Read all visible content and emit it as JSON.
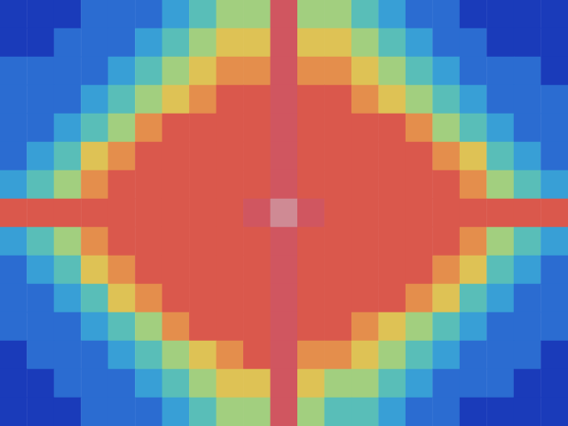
{
  "chart_data": {
    "type": "heatmap",
    "tick_labels": false,
    "grid": false,
    "color_range": [
      0,
      10
    ],
    "cells": [
      [
        1,
        1,
        1,
        2,
        2,
        2,
        3,
        4,
        5,
        5,
        9,
        5,
        5,
        4,
        3,
        2,
        2,
        1,
        1,
        1,
        1
      ],
      [
        1,
        1,
        2,
        2,
        2,
        3,
        4,
        5,
        6,
        6,
        9,
        6,
        6,
        5,
        4,
        3,
        2,
        2,
        1,
        1,
        1
      ],
      [
        2,
        2,
        2,
        2,
        3,
        4,
        5,
        6,
        7,
        7,
        9,
        7,
        7,
        6,
        5,
        4,
        3,
        2,
        2,
        2,
        1
      ],
      [
        2,
        2,
        2,
        3,
        4,
        5,
        6,
        7,
        8,
        8,
        9,
        8,
        8,
        7,
        6,
        5,
        4,
        3,
        2,
        2,
        2
      ],
      [
        2,
        2,
        3,
        4,
        5,
        7,
        8,
        8,
        8,
        8,
        9,
        8,
        8,
        8,
        8,
        7,
        5,
        4,
        3,
        2,
        2
      ],
      [
        2,
        3,
        4,
        6,
        7,
        8,
        8,
        8,
        8,
        8,
        9,
        8,
        8,
        8,
        8,
        8,
        7,
        6,
        4,
        3,
        2
      ],
      [
        3,
        4,
        5,
        7,
        8,
        8,
        8,
        8,
        8,
        8,
        9,
        8,
        8,
        8,
        8,
        8,
        8,
        7,
        5,
        4,
        3
      ],
      [
        8,
        8,
        8,
        8,
        8,
        8,
        8,
        8,
        8,
        9,
        10,
        9,
        8,
        8,
        8,
        8,
        8,
        8,
        8,
        8,
        8
      ],
      [
        3,
        4,
        5,
        7,
        8,
        8,
        8,
        8,
        8,
        8,
        9,
        8,
        8,
        8,
        8,
        8,
        8,
        7,
        5,
        4,
        3
      ],
      [
        2,
        3,
        4,
        6,
        7,
        8,
        8,
        8,
        8,
        8,
        9,
        8,
        8,
        8,
        8,
        8,
        7,
        6,
        4,
        3,
        2
      ],
      [
        2,
        2,
        3,
        4,
        6,
        7,
        8,
        8,
        8,
        8,
        9,
        8,
        8,
        8,
        8,
        7,
        6,
        4,
        3,
        2,
        2
      ],
      [
        2,
        2,
        2,
        3,
        4,
        5,
        7,
        8,
        8,
        8,
        9,
        8,
        8,
        7,
        6,
        5,
        4,
        3,
        2,
        2,
        2
      ],
      [
        1,
        2,
        2,
        2,
        3,
        4,
        5,
        6,
        7,
        8,
        9,
        7,
        7,
        6,
        5,
        4,
        3,
        2,
        2,
        2,
        1
      ],
      [
        1,
        1,
        2,
        2,
        2,
        3,
        4,
        5,
        6,
        6,
        9,
        6,
        5,
        5,
        4,
        3,
        2,
        2,
        2,
        1,
        1
      ],
      [
        1,
        1,
        1,
        2,
        2,
        2,
        3,
        4,
        5,
        5,
        9,
        5,
        4,
        4,
        3,
        2,
        2,
        1,
        1,
        1,
        1
      ]
    ]
  }
}
